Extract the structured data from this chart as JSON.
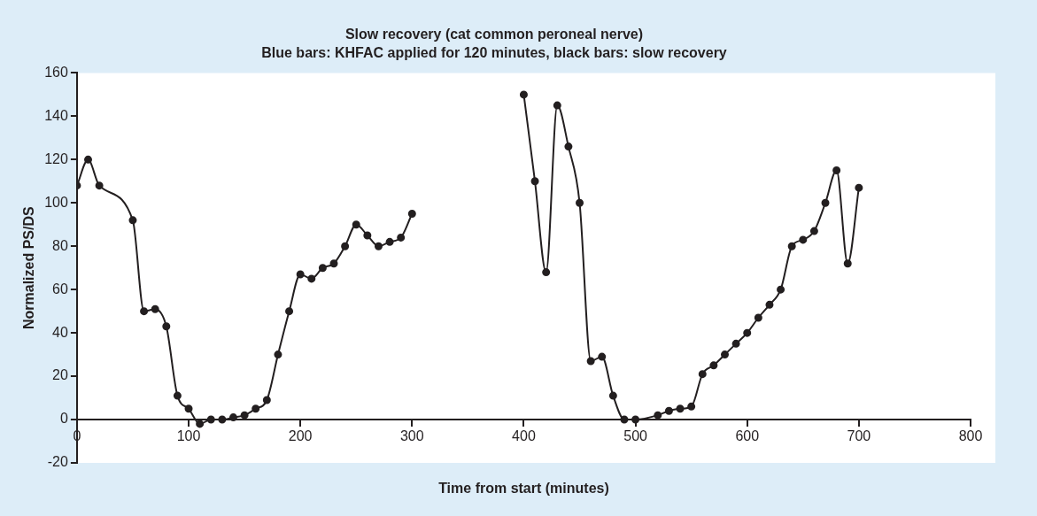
{
  "chart_data": {
    "type": "line",
    "title": "Slow recovery (cat common peroneal nerve)",
    "subtitle": "Blue bars: KHFAC applied for 120 minutes, black bars: slow recovery",
    "xlabel": "Time from start (minutes)",
    "ylabel": "Normalized PS/DS",
    "x": [
      0,
      10,
      20,
      50,
      60,
      70,
      80,
      90,
      100,
      110,
      120,
      130,
      140,
      150,
      160,
      170,
      180,
      190,
      200,
      210,
      220,
      230,
      240,
      250,
      260,
      270,
      280,
      290,
      300,
      350,
      400,
      410,
      420,
      430,
      440,
      450,
      460,
      470,
      480,
      490,
      500,
      520,
      530,
      540,
      550,
      560,
      570,
      580,
      590,
      600,
      610,
      620,
      630,
      640,
      650,
      660,
      670,
      680,
      690,
      700
    ],
    "series": [
      {
        "color": "#231f20",
        "values": [
          108,
          120,
          108,
          92,
          50,
          51,
          43,
          11,
          5,
          -2,
          0,
          0,
          1,
          2,
          5,
          9,
          30,
          50,
          67,
          65,
          70,
          72,
          80,
          90,
          85,
          80,
          82,
          84,
          95,
          null,
          150,
          110,
          68,
          145,
          126,
          100,
          27,
          29,
          11,
          0,
          0,
          2,
          4,
          5,
          6,
          21,
          25,
          30,
          35,
          40,
          47,
          53,
          60,
          80,
          83,
          87,
          100,
          115,
          72,
          107
        ]
      }
    ],
    "xlim": [
      0,
      800
    ],
    "xticks": [
      0,
      100,
      200,
      300,
      400,
      500,
      600,
      700,
      800
    ],
    "ylim": [
      -20,
      160
    ],
    "yticks": [
      -20,
      0,
      20,
      40,
      60,
      80,
      100,
      120,
      140,
      160
    ],
    "grid": false,
    "legend": false,
    "marker": "circle",
    "line_style": "solid"
  }
}
